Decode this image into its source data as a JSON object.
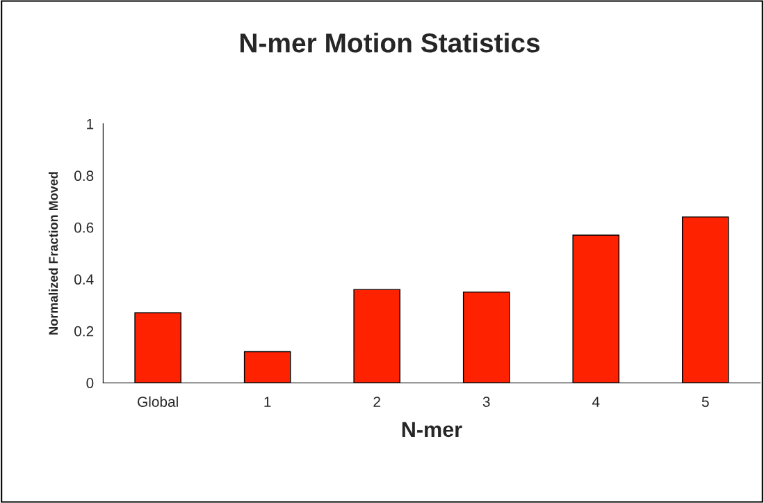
{
  "chart_data": {
    "type": "bar",
    "title": "N-mer Motion Statistics",
    "xlabel": "N-mer",
    "ylabel": "Normalized Fraction Moved",
    "categories": [
      "Global",
      "1",
      "2",
      "3",
      "4",
      "5"
    ],
    "values": [
      0.27,
      0.12,
      0.36,
      0.35,
      0.57,
      0.64
    ],
    "color": "#ff2200",
    "ylim": [
      0,
      1
    ],
    "yticks": [
      0,
      0.2,
      0.4,
      0.6,
      0.8,
      1
    ],
    "grid": false,
    "legend": false
  }
}
